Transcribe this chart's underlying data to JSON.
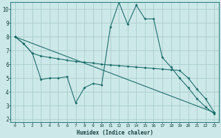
{
  "xlabel": "Humidex (Indice chaleur)",
  "background_color": "#cce8e8",
  "grid_color": "#aacccc",
  "line_color": "#1a6b6b",
  "xlim": [
    -0.5,
    23.5
  ],
  "ylim": [
    1.8,
    10.5
  ],
  "yticks": [
    2,
    3,
    4,
    5,
    6,
    7,
    8,
    9,
    10
  ],
  "xticks": [
    0,
    1,
    2,
    3,
    4,
    5,
    6,
    7,
    8,
    9,
    10,
    11,
    12,
    13,
    14,
    15,
    16,
    17,
    18,
    19,
    20,
    21,
    22,
    23
  ],
  "line1_x": [
    0,
    1,
    2,
    3,
    4,
    5,
    6,
    7,
    8,
    9,
    10,
    11,
    12,
    13,
    14,
    15,
    16,
    17,
    18,
    19,
    20,
    21,
    22,
    23
  ],
  "line1_y": [
    8.0,
    7.5,
    6.8,
    4.9,
    5.0,
    5.0,
    5.1,
    3.2,
    4.3,
    4.6,
    4.5,
    8.7,
    10.5,
    8.9,
    10.3,
    9.3,
    9.3,
    6.5,
    5.8,
    5.0,
    4.3,
    3.5,
    2.9,
    2.4
  ],
  "line2_x": [
    0,
    1,
    2,
    3,
    4,
    5,
    6,
    7,
    8,
    9,
    10,
    11,
    12,
    13,
    14,
    15,
    16,
    17,
    18,
    19,
    20,
    21,
    22,
    23
  ],
  "line2_y": [
    8.0,
    7.5,
    6.8,
    6.6,
    6.5,
    6.4,
    6.3,
    6.2,
    6.15,
    6.1,
    6.0,
    5.95,
    5.9,
    5.85,
    5.8,
    5.75,
    5.7,
    5.65,
    5.6,
    5.55,
    5.0,
    4.2,
    3.5,
    2.5
  ],
  "line3_x": [
    0,
    23
  ],
  "line3_y": [
    8.0,
    2.5
  ]
}
